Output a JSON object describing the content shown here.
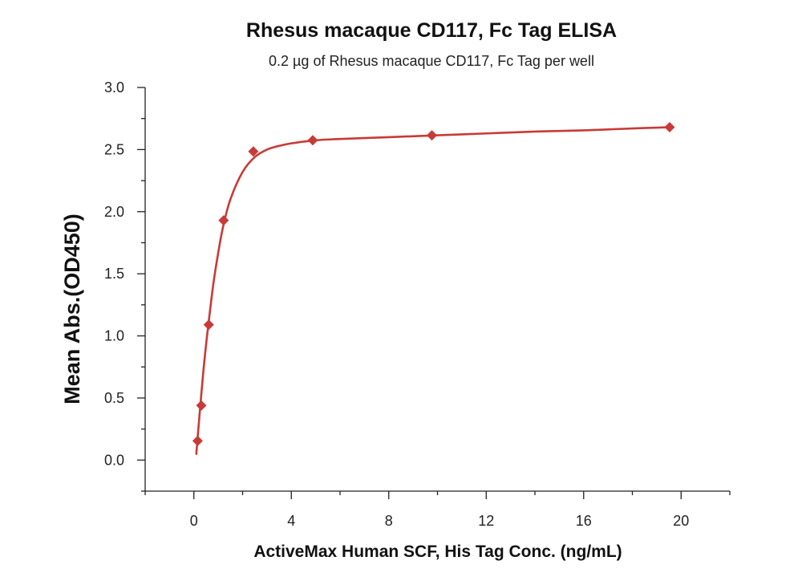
{
  "chart_data": {
    "type": "scatter",
    "title": "Rhesus macaque CD117, Fc Tag ELISA",
    "subtitle": "0.2 µg of Rhesus macaque CD117, Fc Tag per well",
    "xlabel": "ActiveMax Human SCF, His Tag Conc. (ng/mL)",
    "ylabel": "Mean Abs.(OD450)",
    "xlim": [
      -2,
      22
    ],
    "ylim": [
      -0.25,
      3.0
    ],
    "xticks": [
      0,
      4,
      8,
      12,
      16,
      20
    ],
    "yticks": [
      0.0,
      0.5,
      1.0,
      1.5,
      2.0,
      2.5,
      3.0
    ],
    "xtick_labels": [
      "0",
      "4",
      "8",
      "12",
      "16",
      "20"
    ],
    "ytick_labels": [
      "0.0",
      "0.5",
      "1.0",
      "1.5",
      "2.0",
      "2.5",
      "3.0"
    ],
    "grid": false,
    "legend": "none",
    "marker": "diamond",
    "color": "#c93a37",
    "series": [
      {
        "x": [
          0.153,
          0.305,
          0.61,
          1.22,
          2.44,
          4.88,
          9.77,
          19.53
        ],
        "y": [
          0.155,
          0.44,
          1.09,
          1.93,
          2.485,
          2.575,
          2.615,
          2.68
        ]
      }
    ],
    "fit_curve": {
      "x": [
        0.1,
        0.2,
        0.3,
        0.4,
        0.5,
        0.6,
        0.8,
        1.0,
        1.2,
        1.5,
        2.0,
        2.5,
        3.0,
        3.5,
        4.0,
        5.0,
        6.0,
        8.0,
        10.0,
        12.0,
        14.0,
        16.0,
        18.0,
        19.53
      ],
      "y": [
        0.05,
        0.29,
        0.52,
        0.74,
        0.93,
        1.1,
        1.42,
        1.67,
        1.88,
        2.1,
        2.32,
        2.44,
        2.5,
        2.53,
        2.55,
        2.575,
        2.585,
        2.6,
        2.615,
        2.63,
        2.645,
        2.655,
        2.67,
        2.68
      ]
    }
  }
}
